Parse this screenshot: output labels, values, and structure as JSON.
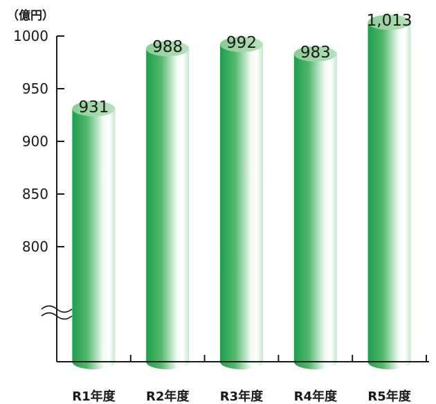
{
  "chart_data": {
    "type": "bar",
    "title": "",
    "unit_label": "（億円）",
    "xlabel": "",
    "ylabel": "",
    "categories": [
      "R1年度",
      "R2年度",
      "R3年度",
      "R4年度",
      "R5年度"
    ],
    "values": [
      931,
      988,
      992,
      983,
      1013
    ],
    "value_labels": [
      "931",
      "988",
      "992",
      "983",
      "1,013"
    ],
    "y_ticks": [
      "800",
      "850",
      "900",
      "950",
      "1000"
    ],
    "ylim": [
      800,
      1000
    ],
    "axis_break": true,
    "grid": false,
    "legend": "none",
    "bar_style": "3D cylinder",
    "colors": {
      "bar_dark": "#1e9e4e",
      "bar_light": "#ffffff",
      "bar_top": "#9fd6a6",
      "axis": "#1a1a1a"
    }
  }
}
